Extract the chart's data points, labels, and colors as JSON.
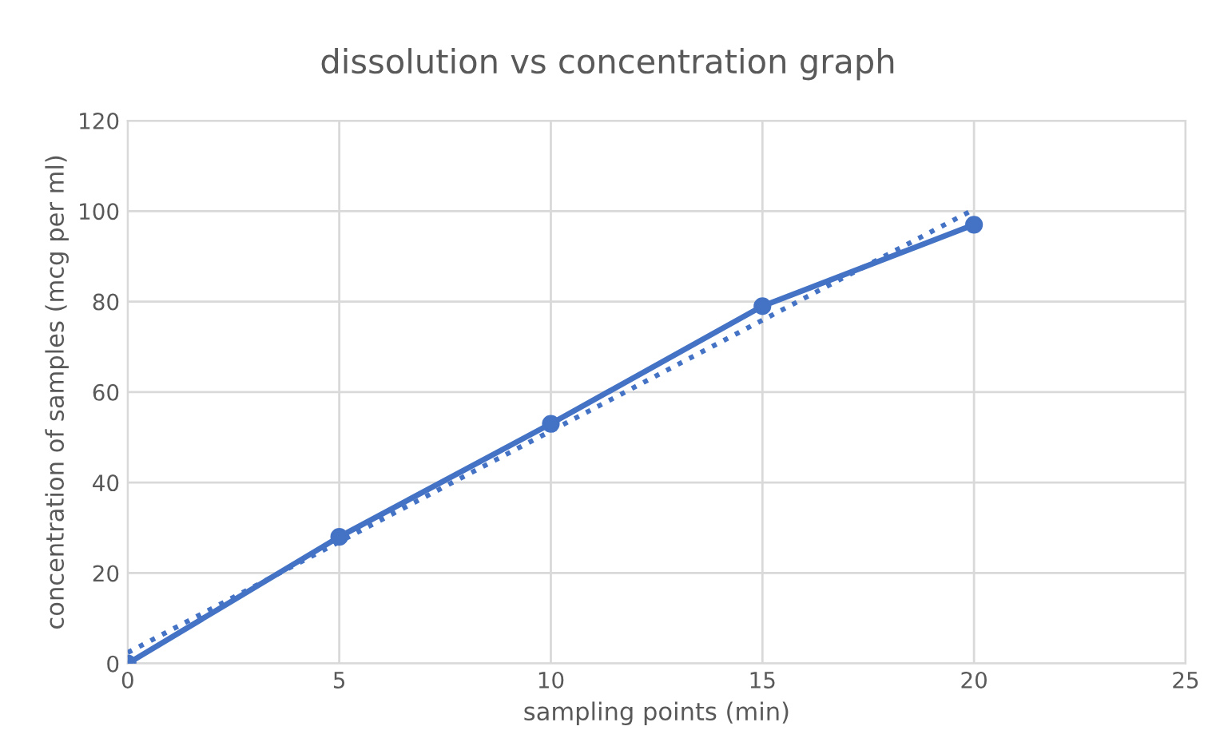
{
  "chart_data": {
    "type": "line",
    "title": "dissolution vs concentration graph",
    "xlabel": "sampling points (min)",
    "ylabel": "concentration of samples (mcg per ml)",
    "x": [
      0,
      5,
      10,
      15,
      20
    ],
    "series": [
      {
        "color": "#4472c4",
        "values": [
          0,
          28,
          53,
          79,
          97
        ],
        "marker": "circle",
        "line_style": "solid"
      },
      {
        "color": "#4472c4",
        "x": [
          0,
          20
        ],
        "values": [
          2.4,
          100.4
        ],
        "marker": "none",
        "line_style": "dotted"
      }
    ],
    "xlim": [
      0,
      25
    ],
    "ylim": [
      0,
      120
    ],
    "xticks": [
      0,
      5,
      10,
      15,
      20,
      25
    ],
    "yticks": [
      0,
      20,
      40,
      60,
      80,
      100,
      120
    ],
    "grid": true,
    "legend": false
  }
}
